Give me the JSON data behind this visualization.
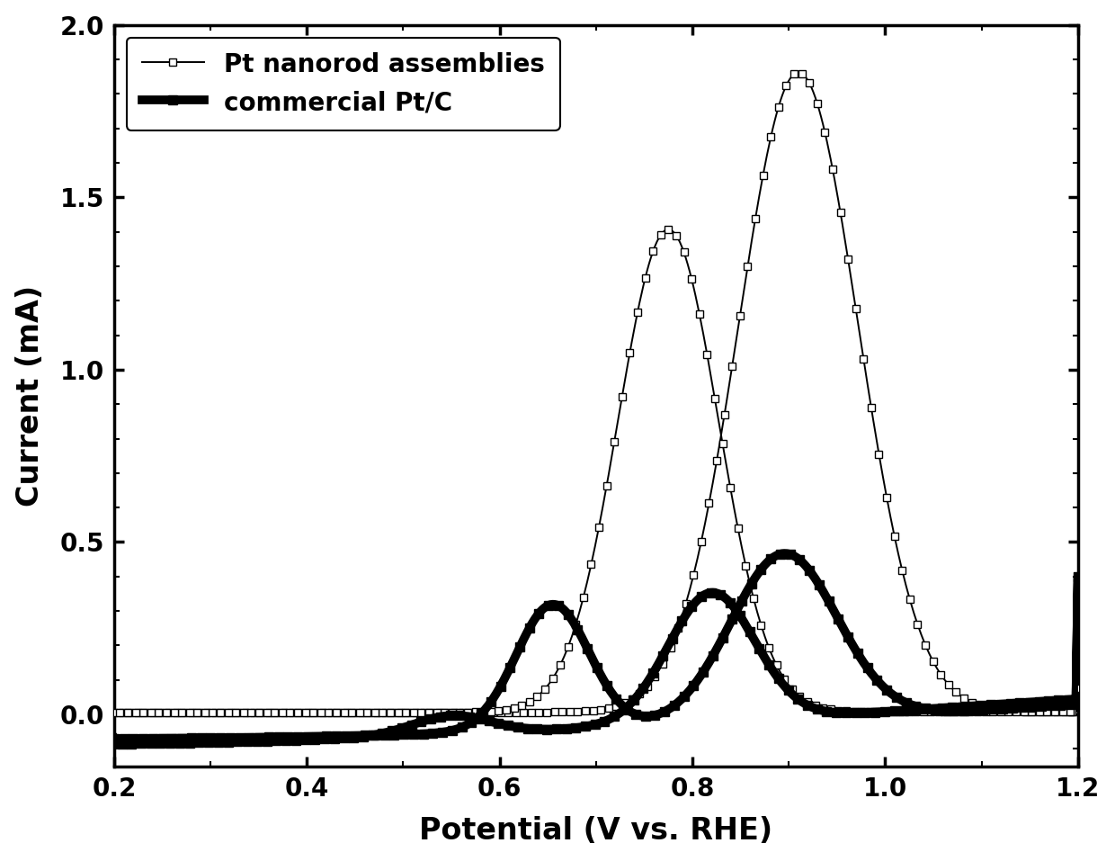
{
  "xlabel": "Potential (V vs. RHE)",
  "ylabel": "Current (mA)",
  "xlim": [
    0.2,
    1.2
  ],
  "ylim": [
    -0.15,
    2.0
  ],
  "xticks": [
    0.2,
    0.4,
    0.6,
    0.8,
    1.0,
    1.2
  ],
  "yticks": [
    0.0,
    0.5,
    1.0,
    1.5,
    2.0
  ],
  "legend1": "Pt nanorod assemblies",
  "legend2": "commercial Pt/C",
  "background_color": "#ffffff",
  "xlabel_fontsize": 24,
  "ylabel_fontsize": 24,
  "tick_fontsize": 20,
  "legend_fontsize": 20
}
